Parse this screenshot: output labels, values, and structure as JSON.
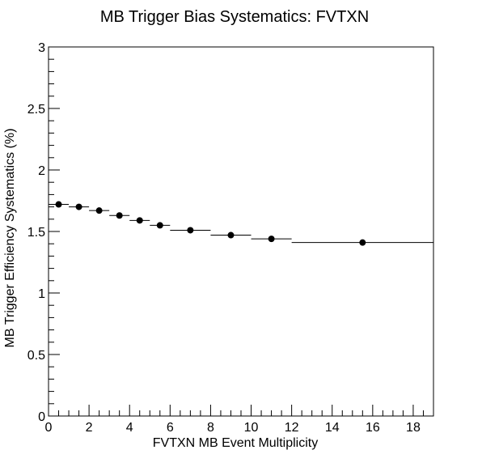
{
  "chart_data": {
    "type": "scatter",
    "title": "MB Trigger Bias Systematics: FVTXN",
    "xlabel": "FVTXN MB Event Multiplicity",
    "ylabel": "MB Trigger Efficiency Systematics (%)",
    "xlim": [
      0,
      19
    ],
    "ylim": [
      0,
      3
    ],
    "x_ticks": [
      0,
      2,
      4,
      6,
      8,
      10,
      12,
      14,
      16,
      18
    ],
    "x_tick_labels": [
      "0",
      "2",
      "4",
      "6",
      "8",
      "10",
      "12",
      "14",
      "16",
      "18"
    ],
    "y_ticks": [
      0,
      0.5,
      1,
      1.5,
      2,
      2.5,
      3
    ],
    "y_tick_labels": [
      "0",
      "0.5",
      "1",
      "1.5",
      "2",
      "2.5",
      "3"
    ],
    "grid": false,
    "series": [
      {
        "points": [
          {
            "x": 0.5,
            "y": 1.72,
            "x_low": 0,
            "x_high": 1
          },
          {
            "x": 1.5,
            "y": 1.7,
            "x_low": 1,
            "x_high": 2
          },
          {
            "x": 2.5,
            "y": 1.67,
            "x_low": 2,
            "x_high": 3
          },
          {
            "x": 3.5,
            "y": 1.63,
            "x_low": 3,
            "x_high": 4
          },
          {
            "x": 4.5,
            "y": 1.59,
            "x_low": 4,
            "x_high": 5
          },
          {
            "x": 5.5,
            "y": 1.55,
            "x_low": 5,
            "x_high": 6
          },
          {
            "x": 7,
            "y": 1.51,
            "x_low": 6,
            "x_high": 8
          },
          {
            "x": 9,
            "y": 1.47,
            "x_low": 8,
            "x_high": 10
          },
          {
            "x": 11,
            "y": 1.44,
            "x_low": 10,
            "x_high": 12
          },
          {
            "x": 15.5,
            "y": 1.41,
            "x_low": 12,
            "x_high": 19
          }
        ],
        "color": "#000000"
      }
    ]
  }
}
